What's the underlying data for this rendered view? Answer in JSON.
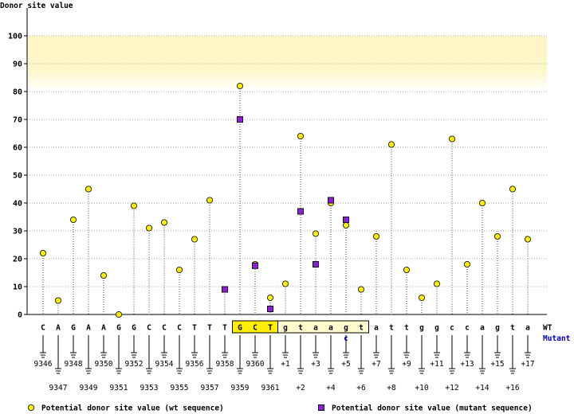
{
  "chart_data": {
    "type": "lollipop",
    "ylabel": "Donor site value",
    "ylim": [
      0,
      100
    ],
    "yticks": [
      0,
      10,
      20,
      30,
      40,
      50,
      60,
      70,
      80,
      90,
      100
    ],
    "highlight_band": [
      80,
      100
    ],
    "wt_row_label": "WT",
    "mutant_row_label": "Mutant",
    "nucleotides": [
      "C",
      "A",
      "G",
      "A",
      "A",
      "G",
      "G",
      "C",
      "C",
      "C",
      "T",
      "T",
      "T",
      "G",
      "C",
      "T",
      "g",
      "t",
      "a",
      "a",
      "g",
      "t",
      "a",
      "t",
      "t",
      "g",
      "g",
      "c",
      "c",
      "a",
      "g",
      "t",
      "a"
    ],
    "mutant_nucleotides": [
      "",
      "",
      "",
      "",
      "",
      "",
      "",
      "",
      "",
      "",
      "",
      "",
      "",
      "",
      "",
      "",
      "",
      "",
      "",
      "",
      "c",
      "",
      "",
      "",
      "",
      "",
      "",
      "",
      "",
      "",
      "",
      "",
      ""
    ],
    "exon_box_range": [
      13,
      15
    ],
    "intron_box_range": [
      16,
      21
    ],
    "positions": [
      "9346",
      "9347",
      "9348",
      "9349",
      "9350",
      "9351",
      "9352",
      "9353",
      "9354",
      "9355",
      "9356",
      "9357",
      "9358",
      "9359",
      "9360",
      "9361",
      "+1",
      "+2",
      "+3",
      "+4",
      "+5",
      "+6",
      "+7",
      "+8",
      "+9",
      "+10",
      "+11",
      "+12",
      "+13",
      "+14",
      "+15",
      "+16",
      "+17"
    ],
    "series": [
      {
        "name": "Potential donor site value (wt sequence)",
        "marker": "circle",
        "color": "#ffee00",
        "values": [
          22,
          5,
          34,
          45,
          14,
          0,
          39,
          31,
          33,
          16,
          27,
          41,
          9,
          82,
          18,
          6,
          11,
          64,
          29,
          40,
          32,
          9,
          28,
          61,
          16,
          6,
          11,
          63,
          18,
          40,
          28,
          45,
          27
        ]
      },
      {
        "name": "Potential donor site value (mutant sequence)",
        "marker": "square",
        "color": "#8a1fd6",
        "values": [
          null,
          null,
          null,
          null,
          null,
          null,
          null,
          null,
          null,
          null,
          null,
          null,
          9,
          70,
          17.5,
          2,
          null,
          37,
          18,
          41,
          34,
          null,
          null,
          null,
          null,
          null,
          null,
          null,
          null,
          null,
          null,
          null,
          null
        ]
      }
    ]
  }
}
